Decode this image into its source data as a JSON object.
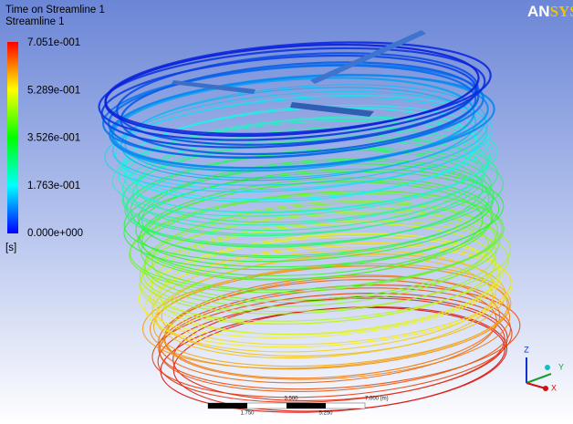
{
  "legend": {
    "title": "Time on Streamline 1",
    "subtitle": "Streamline 1",
    "labels": [
      "7.051e-001",
      "5.289e-001",
      "3.526e-001",
      "1.763e-001",
      "0.000e+000"
    ],
    "unit": "[s]"
  },
  "logo": [
    "AN",
    "SYS"
  ],
  "scale_bar": {
    "top_labels": [
      "3.500",
      "7.000  (m)"
    ],
    "bottom_labels": [
      "1.750",
      "5.250"
    ]
  },
  "triad": {
    "z": "Z",
    "y": "Y",
    "x": "X"
  }
}
